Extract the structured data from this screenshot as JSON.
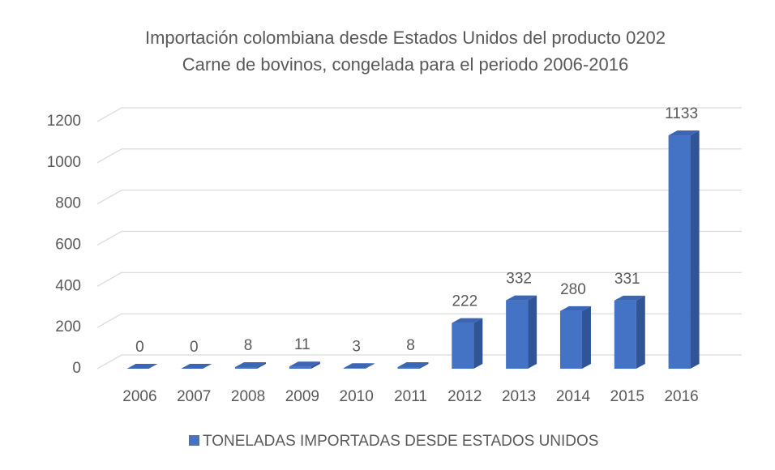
{
  "chart_data": {
    "type": "bar3d",
    "title": [
      "Importación colombiana desde Estados Unidos del producto 0202",
      "Carne de bovinos, congelada para el periodo 2006-2016"
    ],
    "categories": [
      "2006",
      "2007",
      "2008",
      "2009",
      "2010",
      "2011",
      "2012",
      "2013",
      "2014",
      "2015",
      "2016"
    ],
    "series": [
      {
        "name": "TONELADAS IMPORTADAS DESDE ESTADOS UNIDOS",
        "color": "#4472c4",
        "values": [
          0,
          0,
          8,
          11,
          3,
          8,
          222,
          332,
          280,
          331,
          1133
        ]
      }
    ],
    "ylim": [
      0,
      1200
    ],
    "yticks": [
      0,
      200,
      400,
      600,
      800,
      1000,
      1200
    ],
    "grid": true,
    "legend": "bottom"
  }
}
